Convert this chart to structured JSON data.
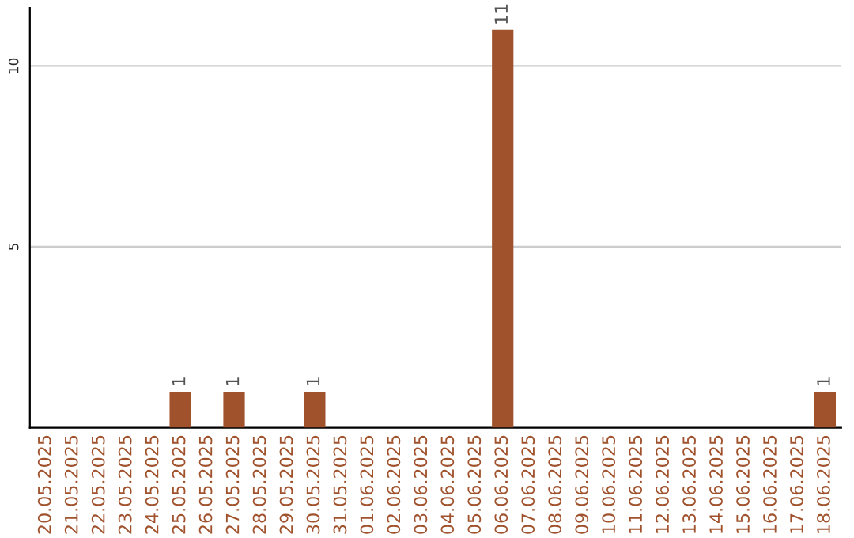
{
  "chart_data": {
    "type": "bar",
    "categories": [
      "20.05.2025",
      "21.05.2025",
      "22.05.2025",
      "23.05.2025",
      "24.05.2025",
      "25.05.2025",
      "26.05.2025",
      "27.05.2025",
      "28.05.2025",
      "29.05.2025",
      "30.05.2025",
      "31.05.2025",
      "01.06.2025",
      "02.06.2025",
      "03.06.2025",
      "04.06.2025",
      "05.06.2025",
      "06.06.2025",
      "07.06.2025",
      "08.06.2025",
      "09.06.2025",
      "10.06.2025",
      "11.06.2025",
      "12.06.2025",
      "13.06.2025",
      "14.06.2025",
      "15.06.2025",
      "16.06.2025",
      "17.06.2025",
      "18.06.2025"
    ],
    "values": [
      null,
      null,
      null,
      null,
      null,
      1,
      null,
      1,
      null,
      null,
      1,
      null,
      null,
      null,
      null,
      null,
      null,
      11,
      null,
      null,
      null,
      null,
      null,
      null,
      null,
      null,
      null,
      null,
      null,
      1
    ],
    "value_labels": [
      null,
      null,
      null,
      null,
      null,
      "1",
      null,
      "1",
      null,
      null,
      "1",
      null,
      null,
      null,
      null,
      null,
      null,
      "11",
      null,
      null,
      null,
      null,
      null,
      null,
      null,
      null,
      null,
      null,
      null,
      "1"
    ],
    "color": "#a0522d",
    "ylim": [
      0,
      11.6
    ],
    "yticks": [
      5,
      10
    ],
    "grid": "y",
    "legend": false
  }
}
